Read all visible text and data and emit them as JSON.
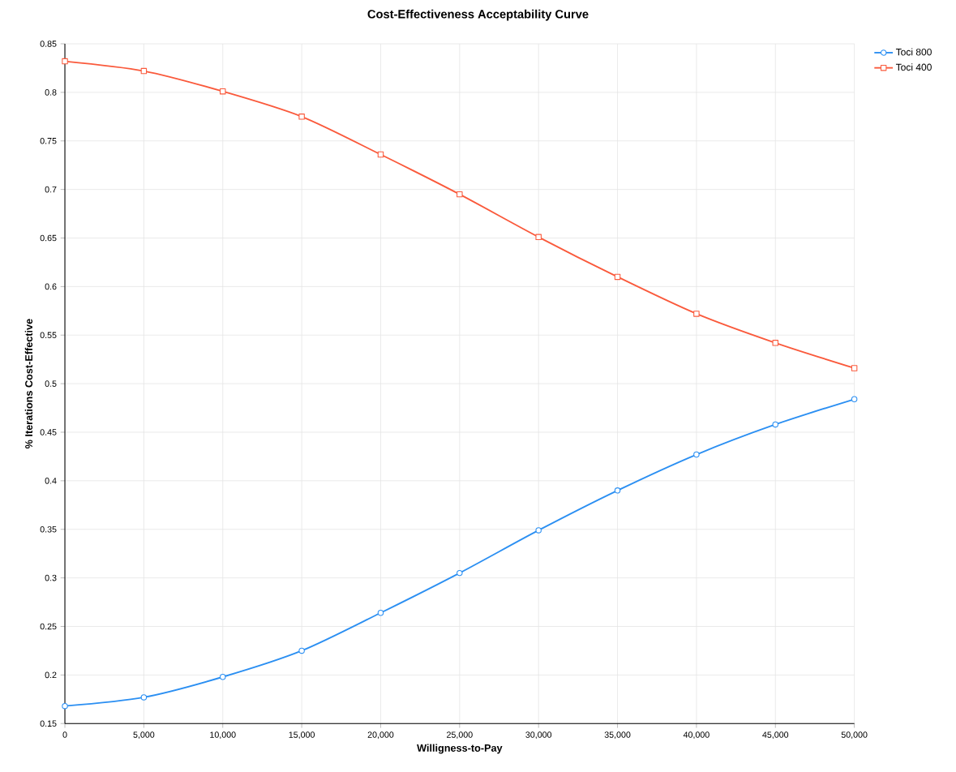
{
  "chart_data": {
    "type": "line",
    "title": "Cost-Effectiveness Acceptability Curve",
    "xlabel": "Willigness-to-Pay",
    "ylabel": "% Iterations Cost-Effective",
    "x": [
      0,
      5000,
      10000,
      15000,
      20000,
      25000,
      30000,
      35000,
      40000,
      45000,
      50000
    ],
    "series": [
      {
        "name": "Toci 800",
        "color": "#2b8ff2",
        "marker": "circle",
        "values": [
          0.168,
          0.177,
          0.198,
          0.225,
          0.264,
          0.305,
          0.349,
          0.39,
          0.427,
          0.458,
          0.484
        ]
      },
      {
        "name": "Toci 400",
        "color": "#fa5a3c",
        "marker": "square",
        "values": [
          0.832,
          0.822,
          0.801,
          0.775,
          0.736,
          0.695,
          0.651,
          0.61,
          0.572,
          0.542,
          0.516
        ]
      }
    ],
    "xlim": [
      0,
      50000
    ],
    "ylim": [
      0.15,
      0.85
    ],
    "xticks": [
      0,
      {
        "value": 5000,
        "label": "5,000"
      },
      {
        "value": 10000,
        "label": "10,000"
      },
      {
        "value": 15000,
        "label": "15,000"
      },
      {
        "value": 20000,
        "label": "20,000"
      },
      {
        "value": 25000,
        "label": "25,000"
      },
      {
        "value": 30000,
        "label": "30,000"
      },
      {
        "value": 35000,
        "label": "35,000"
      },
      {
        "value": 40000,
        "label": "40,000"
      },
      {
        "value": 45000,
        "label": "45,000"
      },
      {
        "value": 50000,
        "label": "50,000"
      }
    ],
    "yticks": [
      0.15,
      0.2,
      0.25,
      0.3,
      0.35,
      0.4,
      0.45,
      0.5,
      0.55,
      0.6,
      0.65,
      0.7,
      0.75,
      0.8,
      0.85
    ],
    "grid": true,
    "legend": "top right",
    "line_style": "solid"
  }
}
